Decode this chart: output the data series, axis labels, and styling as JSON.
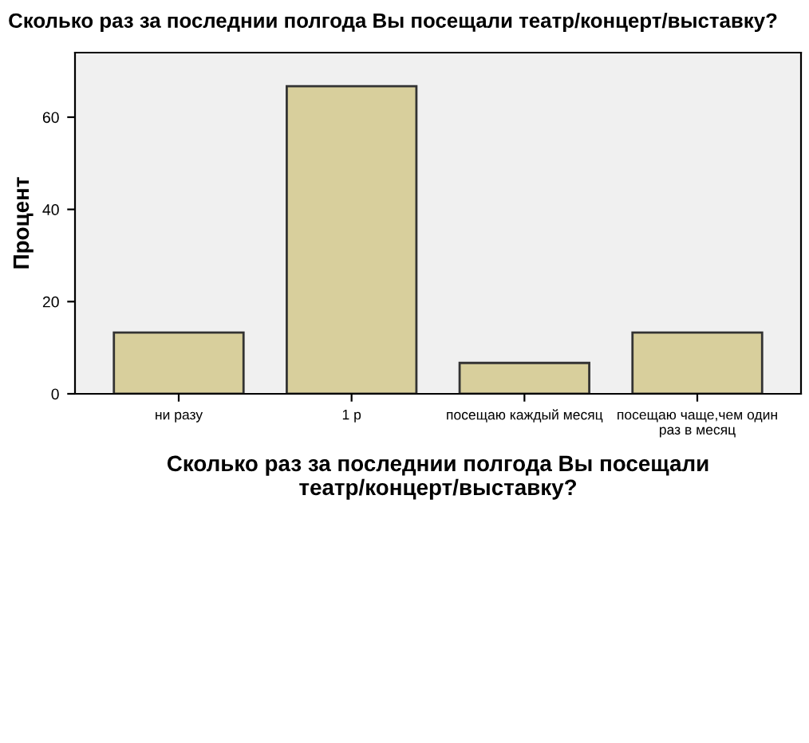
{
  "chart_data": {
    "type": "bar",
    "title": "Сколько раз за последнии полгода Вы посещали театр/концерт/выставку?",
    "xlabel": "Сколько раз за последнии полгода Вы посещали\nтеатр/концерт/выставку?",
    "ylabel": "Процент",
    "categories": [
      "ни разу",
      "1 р",
      "посещаю каждый месяц",
      "посещаю чаще,чем один\nраз в месяц"
    ],
    "values": [
      13.3,
      66.7,
      6.7,
      13.3
    ],
    "color": "#d8cf9c",
    "ylim": [
      0,
      74
    ],
    "yticks": [
      0,
      20,
      40,
      60
    ],
    "grid": false,
    "legend": false
  }
}
